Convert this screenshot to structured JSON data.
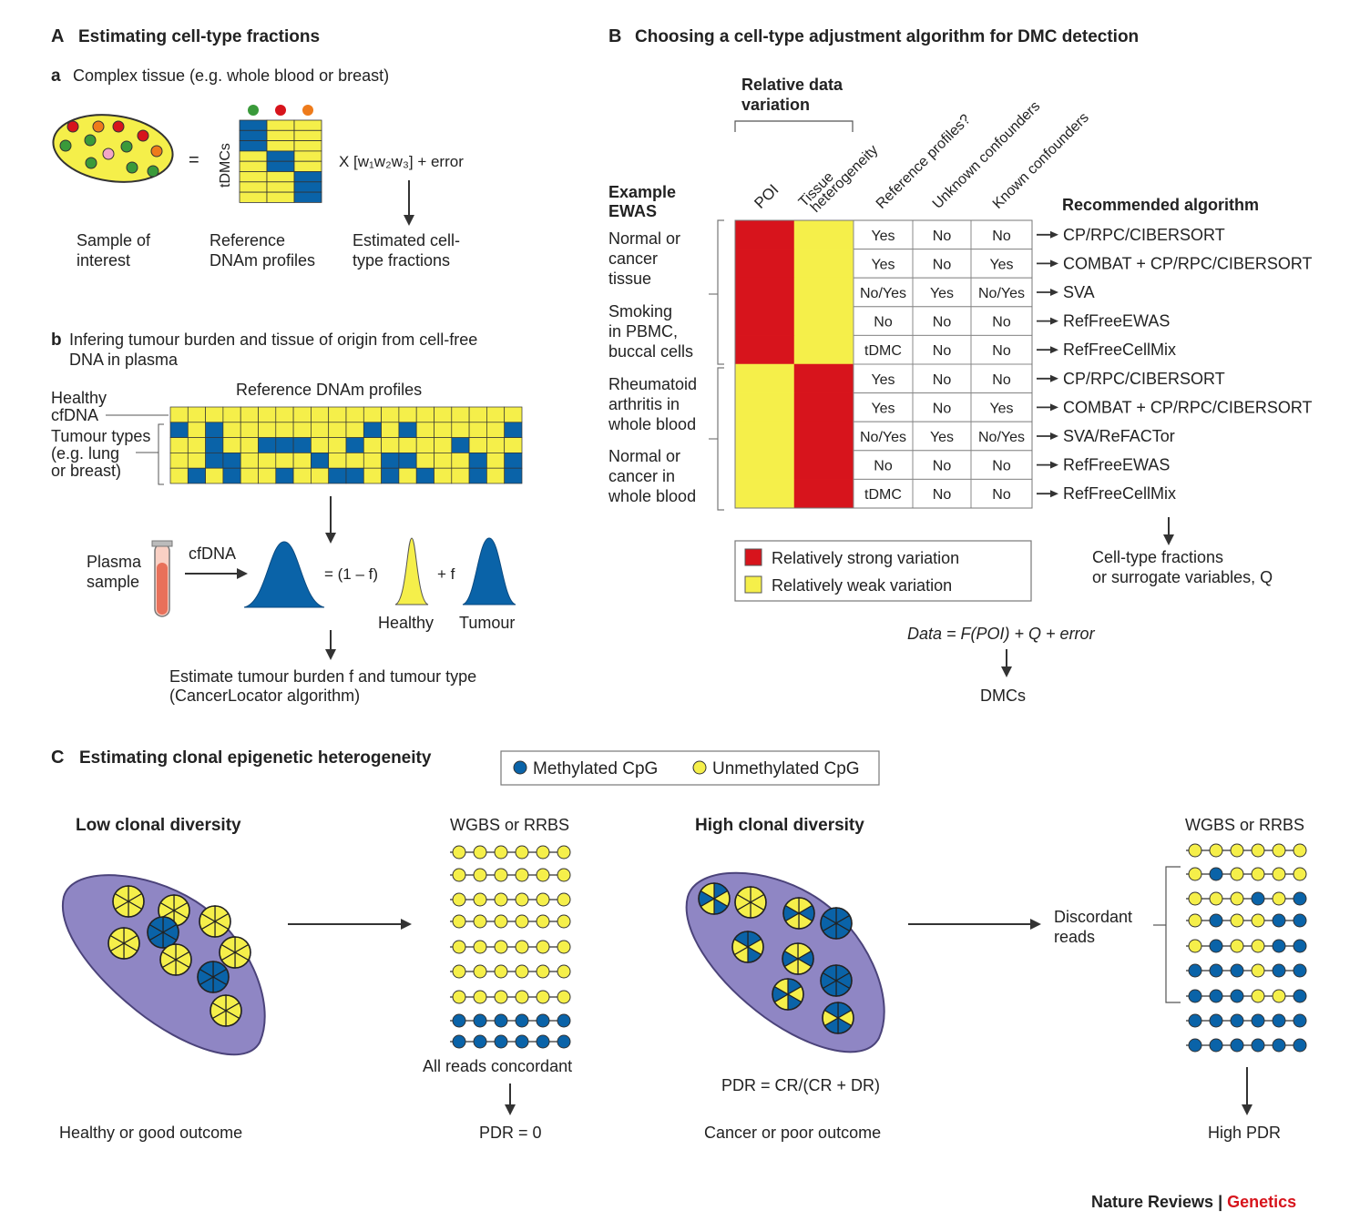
{
  "colors": {
    "red": "#d7141c",
    "yellow": "#f5ef4a",
    "blue": "#0a63a8",
    "purple": "#8f86c4",
    "green": "#3a9a3a",
    "orange": "#ee7b1b"
  },
  "panelA": {
    "label": "A",
    "title": "Estimating cell-type fractions",
    "a_label": "a",
    "a_title": "Complex tissue (e.g. whole blood or breast)",
    "tdmcs": "tDMCs",
    "equals": "=",
    "formula": "X [w₁w₂w₃] + error",
    "sample_l1": "Sample of",
    "sample_l2": "interest",
    "ref_l1": "Reference",
    "ref_l2": "DNAm profiles",
    "est_l1": "Estimated cell-",
    "est_l2": "type fractions",
    "b_label": "b",
    "b_title_l1": "Infering tumour burden and tissue of origin from cell-free",
    "b_title_l2": "DNA in plasma",
    "ref_profiles": "Reference DNAm profiles",
    "healthy_l1": "Healthy",
    "healthy_l2": "cfDNA",
    "tumour_l1": "Tumour types",
    "tumour_l2": "(e.g. lung",
    "tumour_l3": "or breast)",
    "plasma_l1": "Plasma",
    "plasma_l2": "sample",
    "cfdna": "cfDNA",
    "eq_one_minus_f": "=  (1 – f)",
    "plus_f": "+ f",
    "healthy": "Healthy",
    "tumour": "Tumour",
    "estimate_l1": "Estimate tumour burden f and tumour type",
    "estimate_l2": "(CancerLocator algorithm)"
  },
  "panelB": {
    "label": "B",
    "title": "Choosing a cell-type adjustment algorithm for DMC detection",
    "relative_l1": "Relative data",
    "relative_l2": "variation",
    "col_poi": "POI",
    "col_tissue_l1": "Tissue",
    "col_tissue_l2": "heterogeneity",
    "col_ref": "Reference profiles?",
    "col_unknown": "Unknown confounders",
    "col_known": "Known confounders",
    "example_l1": "Example",
    "example_l2": "EWAS",
    "recommended": "Recommended algorithm",
    "group1_labels": [
      "Normal or",
      "cancer",
      "tissue",
      "Smoking",
      "in PBMC,",
      "buccal cells"
    ],
    "group2_labels": [
      "Rheumatoid",
      "arthritis in",
      "whole blood",
      "Normal or",
      "cancer in",
      "whole blood"
    ],
    "rows": [
      {
        "ref": "Yes",
        "unk": "No",
        "known": "No",
        "algo": "CP/RPC/CIBERSORT",
        "poi": "red",
        "tissue": "yellow"
      },
      {
        "ref": "Yes",
        "unk": "No",
        "known": "Yes",
        "algo": "COMBAT + CP/RPC/CIBERSORT",
        "poi": "red",
        "tissue": "yellow"
      },
      {
        "ref": "No/Yes",
        "unk": "Yes",
        "known": "No/Yes",
        "algo": "SVA",
        "poi": "red",
        "tissue": "yellow"
      },
      {
        "ref": "No",
        "unk": "No",
        "known": "No",
        "algo": "RefFreeEWAS",
        "poi": "red",
        "tissue": "yellow"
      },
      {
        "ref": "tDMC",
        "unk": "No",
        "known": "No",
        "algo": "RefFreeCellMix",
        "poi": "red",
        "tissue": "yellow"
      },
      {
        "ref": "Yes",
        "unk": "No",
        "known": "No",
        "algo": "CP/RPC/CIBERSORT",
        "poi": "yellow",
        "tissue": "red"
      },
      {
        "ref": "Yes",
        "unk": "No",
        "known": "Yes",
        "algo": "COMBAT + CP/RPC/CIBERSORT",
        "poi": "yellow",
        "tissue": "red"
      },
      {
        "ref": "No/Yes",
        "unk": "Yes",
        "known": "No/Yes",
        "algo": "SVA/ReFACTor",
        "poi": "yellow",
        "tissue": "red"
      },
      {
        "ref": "No",
        "unk": "No",
        "known": "No",
        "algo": "RefFreeEWAS",
        "poi": "yellow",
        "tissue": "red"
      },
      {
        "ref": "tDMC",
        "unk": "No",
        "known": "No",
        "algo": "RefFreeCellMix",
        "poi": "yellow",
        "tissue": "red"
      }
    ],
    "legend_strong": "Relatively strong variation",
    "legend_weak": "Relatively weak variation",
    "celltype_l1": "Cell-type fractions",
    "celltype_l2": "or surrogate variables, Q",
    "data_eq": "Data = F(POI) + Q + error",
    "dmcs": "DMCs"
  },
  "panelC": {
    "label": "C",
    "title": "Estimating clonal epigenetic heterogeneity",
    "legend_meth": "Methylated CpG",
    "legend_unmeth": "Unmethylated CpG",
    "low": "Low clonal diversity",
    "high": "High clonal diversity",
    "wgbs_left": "WGBS or RRBS",
    "wgbs_right": "WGBS or RRBS",
    "all_concordant": "All reads concordant",
    "pdr0": "PDR = 0",
    "healthy_outcome": "Healthy or good outcome",
    "pdr_formula": "PDR = CR/(CR + DR)",
    "cancer_outcome": "Cancer or poor outcome",
    "discordant_l1": "Discordant",
    "discordant_l2": "reads",
    "high_pdr": "High PDR",
    "reads_left": [
      "UUUUUU",
      "UUUUUU",
      "UUUUUU",
      "UUUUUU",
      "UUUUUU",
      "UUUUUU",
      "UUUUUU",
      "MMMMMM",
      "MMMMMM"
    ],
    "reads_right": [
      "UUUUUU",
      "UMUUUU",
      "UUUMUM",
      "UMUUMM",
      "UMUUMM",
      "MMMUMM",
      "MMMUUM",
      "MMMMMM",
      "MMMMMM"
    ]
  },
  "footer": {
    "journal": "Nature Reviews",
    "sep": " | ",
    "section": "Genetics"
  }
}
